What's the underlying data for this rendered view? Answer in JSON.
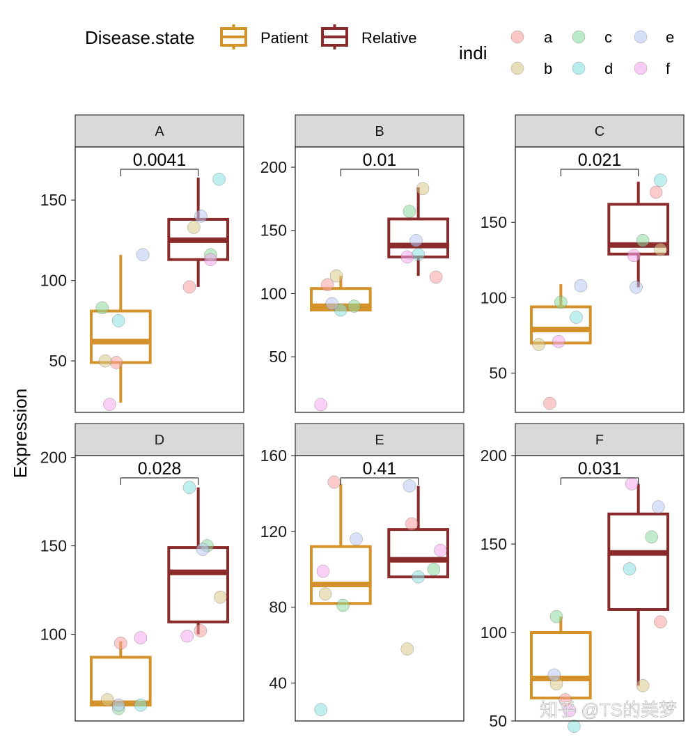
{
  "chart_data": {
    "type": "box",
    "ylabel": "Expression",
    "legend": {
      "position": "top",
      "fill_title": "Disease.state",
      "groups": [
        {
          "name": "Patient",
          "color": "#D4922A"
        },
        {
          "name": "Relative",
          "color": "#8B2A2A"
        }
      ],
      "point_title": "indi",
      "points": [
        {
          "name": "a",
          "color": "#F8A0A0"
        },
        {
          "name": "b",
          "color": "#D8C88A"
        },
        {
          "name": "c",
          "color": "#8ED8A0"
        },
        {
          "name": "d",
          "color": "#8AE0E0"
        },
        {
          "name": "e",
          "color": "#B8C8F0"
        },
        {
          "name": "f",
          "color": "#F4A8EE"
        }
      ]
    },
    "panels": [
      {
        "label": "A",
        "pvalue": "0.0041",
        "ylim": [
          18,
          183
        ],
        "yticks": [
          50,
          100,
          150
        ],
        "boxes": {
          "Patient": {
            "min": 24,
            "q1": 49,
            "median": 62,
            "q3": 81,
            "max": 116
          },
          "Relative": {
            "min": 96,
            "q1": 113,
            "median": 125,
            "q3": 138,
            "max": 164
          }
        },
        "points": [
          {
            "group": "Patient",
            "indi": "a",
            "y": 49,
            "jitter": -0.1
          },
          {
            "group": "Patient",
            "indi": "b",
            "y": 50,
            "jitter": -0.35
          },
          {
            "group": "Patient",
            "indi": "c",
            "y": 83,
            "jitter": -0.42
          },
          {
            "group": "Patient",
            "indi": "d",
            "y": 75,
            "jitter": -0.05
          },
          {
            "group": "Patient",
            "indi": "e",
            "y": 116,
            "jitter": 0.5
          },
          {
            "group": "Patient",
            "indi": "f",
            "y": 23,
            "jitter": -0.25
          },
          {
            "group": "Relative",
            "indi": "a",
            "y": 96,
            "jitter": -0.2
          },
          {
            "group": "Relative",
            "indi": "b",
            "y": 133,
            "jitter": -0.1
          },
          {
            "group": "Relative",
            "indi": "c",
            "y": 116,
            "jitter": 0.28
          },
          {
            "group": "Relative",
            "indi": "d",
            "y": 163,
            "jitter": 0.47
          },
          {
            "group": "Relative",
            "indi": "e",
            "y": 140,
            "jitter": 0.06
          },
          {
            "group": "Relative",
            "indi": "f",
            "y": 113,
            "jitter": 0.28
          }
        ]
      },
      {
        "label": "B",
        "pvalue": "0.01",
        "ylim": [
          6,
          216
        ],
        "yticks": [
          50,
          100,
          150,
          200
        ],
        "boxes": {
          "Patient": {
            "min": 87,
            "q1": 87,
            "median": 90,
            "q3": 104,
            "max": 114
          },
          "Relative": {
            "min": 114,
            "q1": 129,
            "median": 138,
            "q3": 159,
            "max": 184
          }
        },
        "points": [
          {
            "group": "Patient",
            "indi": "a",
            "y": 107,
            "jitter": -0.3
          },
          {
            "group": "Patient",
            "indi": "b",
            "y": 114,
            "jitter": -0.1
          },
          {
            "group": "Patient",
            "indi": "c",
            "y": 90,
            "jitter": 0.3
          },
          {
            "group": "Patient",
            "indi": "d",
            "y": 87,
            "jitter": 0.0
          },
          {
            "group": "Patient",
            "indi": "e",
            "y": 92,
            "jitter": -0.2
          },
          {
            "group": "Patient",
            "indi": "f",
            "y": 12,
            "jitter": -0.45
          },
          {
            "group": "Relative",
            "indi": "a",
            "y": 113,
            "jitter": 0.4
          },
          {
            "group": "Relative",
            "indi": "b",
            "y": 183,
            "jitter": 0.1
          },
          {
            "group": "Relative",
            "indi": "c",
            "y": 165,
            "jitter": -0.2
          },
          {
            "group": "Relative",
            "indi": "d",
            "y": 131,
            "jitter": 0.0
          },
          {
            "group": "Relative",
            "indi": "e",
            "y": 142,
            "jitter": -0.05
          },
          {
            "group": "Relative",
            "indi": "f",
            "y": 129,
            "jitter": -0.25
          }
        ]
      },
      {
        "label": "C",
        "pvalue": "0.021",
        "ylim": [
          24,
          200
        ],
        "yticks": [
          50,
          100,
          150
        ],
        "boxes": {
          "Patient": {
            "min": 70,
            "q1": 70,
            "median": 79,
            "q3": 94,
            "max": 109
          },
          "Relative": {
            "min": 107,
            "q1": 129,
            "median": 135,
            "q3": 162,
            "max": 177
          }
        },
        "points": [
          {
            "group": "Patient",
            "indi": "a",
            "y": 30,
            "jitter": -0.25
          },
          {
            "group": "Patient",
            "indi": "b",
            "y": 69,
            "jitter": -0.5
          },
          {
            "group": "Patient",
            "indi": "c",
            "y": 97,
            "jitter": 0.0
          },
          {
            "group": "Patient",
            "indi": "d",
            "y": 87,
            "jitter": 0.35
          },
          {
            "group": "Patient",
            "indi": "e",
            "y": 108,
            "jitter": 0.45
          },
          {
            "group": "Patient",
            "indi": "f",
            "y": 71,
            "jitter": -0.05
          },
          {
            "group": "Relative",
            "indi": "a",
            "y": 170,
            "jitter": 0.4
          },
          {
            "group": "Relative",
            "indi": "b",
            "y": 132,
            "jitter": 0.5
          },
          {
            "group": "Relative",
            "indi": "c",
            "y": 138,
            "jitter": 0.1
          },
          {
            "group": "Relative",
            "indi": "d",
            "y": 178,
            "jitter": 0.5
          },
          {
            "group": "Relative",
            "indi": "e",
            "y": 107,
            "jitter": -0.05
          },
          {
            "group": "Relative",
            "indi": "f",
            "y": 128,
            "jitter": -0.1
          }
        ]
      },
      {
        "label": "D",
        "pvalue": "0.028",
        "ylim": [
          51,
          201
        ],
        "yticks": [
          100,
          150,
          200
        ],
        "boxes": {
          "Patient": {
            "min": 60,
            "q1": 60,
            "median": 61,
            "q3": 87,
            "max": 96
          },
          "Relative": {
            "min": 100,
            "q1": 107,
            "median": 135,
            "q3": 149,
            "max": 183
          }
        },
        "points": [
          {
            "group": "Patient",
            "indi": "a",
            "y": 95,
            "jitter": 0.0
          },
          {
            "group": "Patient",
            "indi": "b",
            "y": 63,
            "jitter": -0.3
          },
          {
            "group": "Patient",
            "indi": "c",
            "y": 58,
            "jitter": -0.05
          },
          {
            "group": "Patient",
            "indi": "d",
            "y": 60,
            "jitter": 0.45
          },
          {
            "group": "Patient",
            "indi": "e",
            "y": 60,
            "jitter": -0.05
          },
          {
            "group": "Patient",
            "indi": "f",
            "y": 98,
            "jitter": 0.45
          },
          {
            "group": "Relative",
            "indi": "a",
            "y": 102,
            "jitter": 0.05
          },
          {
            "group": "Relative",
            "indi": "b",
            "y": 121,
            "jitter": 0.5
          },
          {
            "group": "Relative",
            "indi": "c",
            "y": 150,
            "jitter": 0.2
          },
          {
            "group": "Relative",
            "indi": "d",
            "y": 183,
            "jitter": -0.2
          },
          {
            "group": "Relative",
            "indi": "e",
            "y": 148,
            "jitter": 0.1
          },
          {
            "group": "Relative",
            "indi": "f",
            "y": 99,
            "jitter": -0.25
          }
        ]
      },
      {
        "label": "E",
        "pvalue": "0.41",
        "ylim": [
          20,
          160
        ],
        "yticks": [
          40,
          80,
          120,
          160
        ],
        "boxes": {
          "Patient": {
            "min": 82,
            "q1": 82,
            "median": 92,
            "q3": 112,
            "max": 145
          },
          "Relative": {
            "min": 96,
            "q1": 96,
            "median": 105,
            "q3": 121,
            "max": 144
          }
        },
        "points": [
          {
            "group": "Patient",
            "indi": "a",
            "y": 146,
            "jitter": -0.15
          },
          {
            "group": "Patient",
            "indi": "b",
            "y": 87,
            "jitter": -0.35
          },
          {
            "group": "Patient",
            "indi": "c",
            "y": 81,
            "jitter": 0.05
          },
          {
            "group": "Patient",
            "indi": "d",
            "y": 26,
            "jitter": -0.45
          },
          {
            "group": "Patient",
            "indi": "e",
            "y": 116,
            "jitter": 0.35
          },
          {
            "group": "Patient",
            "indi": "f",
            "y": 99,
            "jitter": -0.4
          },
          {
            "group": "Relative",
            "indi": "a",
            "y": 124,
            "jitter": -0.15
          },
          {
            "group": "Relative",
            "indi": "b",
            "y": 58,
            "jitter": -0.25
          },
          {
            "group": "Relative",
            "indi": "c",
            "y": 100,
            "jitter": 0.35
          },
          {
            "group": "Relative",
            "indi": "d",
            "y": 96,
            "jitter": 0.0
          },
          {
            "group": "Relative",
            "indi": "e",
            "y": 144,
            "jitter": -0.2
          },
          {
            "group": "Relative",
            "indi": "f",
            "y": 110,
            "jitter": 0.5
          }
        ]
      },
      {
        "label": "F",
        "pvalue": "0.031",
        "ylim": [
          50,
          200
        ],
        "yticks": [
          50,
          100,
          150,
          200
        ],
        "boxes": {
          "Patient": {
            "min": 63,
            "q1": 63,
            "median": 74,
            "q3": 100,
            "max": 109
          },
          "Relative": {
            "min": 70,
            "q1": 113,
            "median": 145,
            "q3": 167,
            "max": 184
          }
        },
        "points": [
          {
            "group": "Patient",
            "indi": "a",
            "y": 62,
            "jitter": 0.1
          },
          {
            "group": "Patient",
            "indi": "b",
            "y": 71,
            "jitter": -0.1
          },
          {
            "group": "Patient",
            "indi": "c",
            "y": 109,
            "jitter": -0.1
          },
          {
            "group": "Patient",
            "indi": "d",
            "y": 47,
            "jitter": 0.3
          },
          {
            "group": "Patient",
            "indi": "e",
            "y": 76,
            "jitter": -0.15
          },
          {
            "group": "Patient",
            "indi": "f",
            "y": 56,
            "jitter": 0.2
          },
          {
            "group": "Relative",
            "indi": "a",
            "y": 106,
            "jitter": 0.5
          },
          {
            "group": "Relative",
            "indi": "b",
            "y": 70,
            "jitter": 0.1
          },
          {
            "group": "Relative",
            "indi": "c",
            "y": 154,
            "jitter": 0.3
          },
          {
            "group": "Relative",
            "indi": "d",
            "y": 136,
            "jitter": -0.2
          },
          {
            "group": "Relative",
            "indi": "e",
            "y": 171,
            "jitter": 0.45
          },
          {
            "group": "Relative",
            "indi": "f",
            "y": 184,
            "jitter": -0.15
          }
        ]
      }
    ]
  },
  "watermark": "知乎 @TS的美梦"
}
